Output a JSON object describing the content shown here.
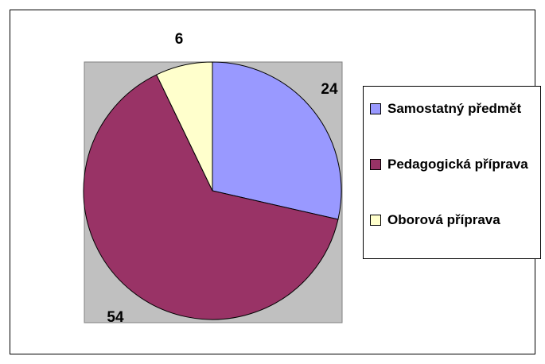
{
  "chart_data": {
    "type": "pie",
    "categories": [
      "Samostatný předmět",
      "Pedagogická příprava",
      "Oborová příprava"
    ],
    "values": [
      24,
      54,
      6
    ],
    "colors": [
      "#9999ff",
      "#993366",
      "#ffffcc"
    ],
    "legend": "right"
  }
}
